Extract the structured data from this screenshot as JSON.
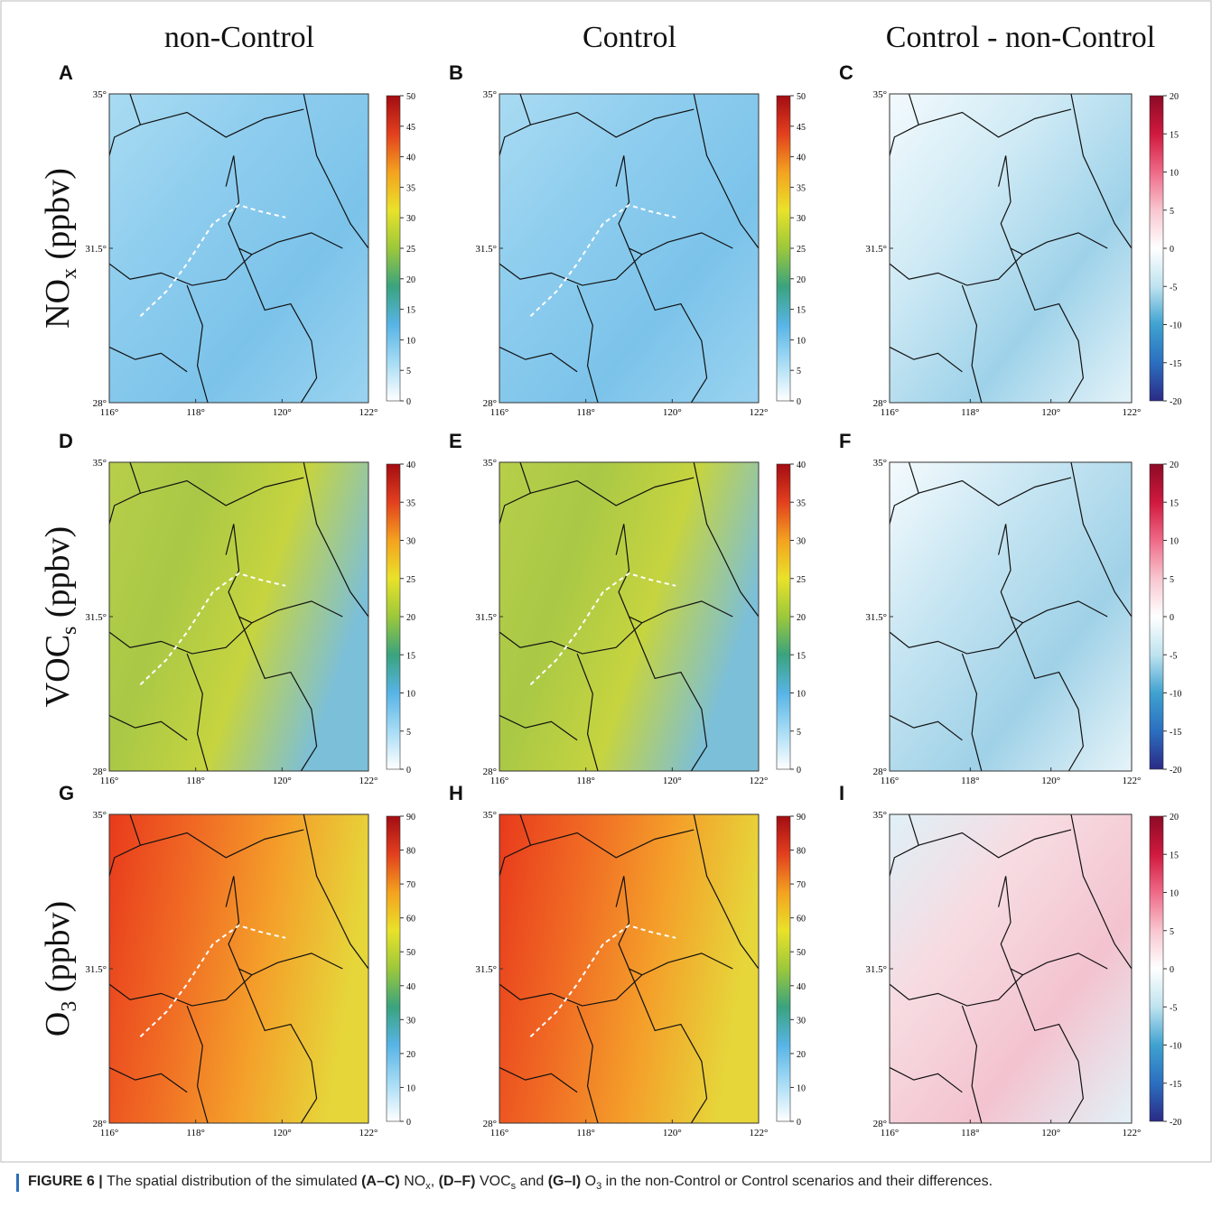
{
  "columns": [
    "non-Control",
    "Control",
    "Control - non-Control"
  ],
  "rows": [
    {
      "name": {
        "main": "NO",
        "sub": "x",
        "rest": " (ppbv)"
      },
      "panels": [
        {
          "letter": "A",
          "colorbar": [
            0,
            5,
            10,
            15,
            20,
            25,
            30,
            35,
            40,
            45,
            50
          ]
        },
        {
          "letter": "B",
          "colorbar": [
            0,
            5,
            10,
            15,
            20,
            25,
            30,
            35,
            40,
            45,
            50
          ]
        },
        {
          "letter": "C",
          "colorbar": [
            -20,
            -15,
            -10,
            -5,
            0,
            5,
            10,
            15,
            20
          ]
        }
      ]
    },
    {
      "name": {
        "main": "VOC",
        "sub": "s",
        "rest": " (ppbv)"
      },
      "panels": [
        {
          "letter": "D",
          "colorbar": [
            0,
            5,
            10,
            15,
            20,
            25,
            30,
            35,
            40
          ]
        },
        {
          "letter": "E",
          "colorbar": [
            0,
            5,
            10,
            15,
            20,
            25,
            30,
            35,
            40
          ]
        },
        {
          "letter": "F",
          "colorbar": [
            -20,
            -15,
            -10,
            -5,
            0,
            5,
            10,
            15,
            20
          ]
        }
      ]
    },
    {
      "name": {
        "main": "O",
        "sub": "3",
        "rest": " (ppbv)"
      },
      "panels": [
        {
          "letter": "G",
          "colorbar": [
            0,
            10,
            20,
            30,
            40,
            50,
            60,
            70,
            80,
            90
          ]
        },
        {
          "letter": "H",
          "colorbar": [
            0,
            10,
            20,
            30,
            40,
            50,
            60,
            70,
            80,
            90
          ]
        },
        {
          "letter": "I",
          "colorbar": [
            -20,
            -15,
            -10,
            -5,
            0,
            5,
            10,
            15,
            20
          ]
        }
      ]
    }
  ],
  "lat_lim": [
    28,
    35
  ],
  "lon_lim": [
    116,
    122
  ],
  "lat_ticks": [
    {
      "value": 35,
      "label": "35°"
    },
    {
      "value": 31.5,
      "label": "31.5°"
    },
    {
      "value": 28,
      "label": "28°"
    }
  ],
  "lon_ticks": [
    {
      "value": 116,
      "label": "116°"
    },
    {
      "value": 118,
      "label": "118°"
    },
    {
      "value": 120,
      "label": "120°"
    },
    {
      "value": 122,
      "label": "122°"
    }
  ],
  "caption": [
    {
      "text": "FIGURE 6 | ",
      "style": "bold"
    },
    {
      "text": "The spatial distribution of the simulated ",
      "style": "normal"
    },
    {
      "text": "(A–C)",
      "style": "bold"
    },
    {
      "text": " NO",
      "style": "normal"
    },
    {
      "text": "x",
      "style": "sub"
    },
    {
      "text": ", ",
      "style": "normal"
    },
    {
      "text": "(D–F)",
      "style": "bold"
    },
    {
      "text": " VOC",
      "style": "normal"
    },
    {
      "text": "s",
      "style": "sub"
    },
    {
      "text": " and ",
      "style": "normal"
    },
    {
      "text": "(G–I)",
      "style": "bold"
    },
    {
      "text": " O",
      "style": "normal"
    },
    {
      "text": "3",
      "style": "sub"
    },
    {
      "text": " in the non-Control or Control scenarios and their differences.",
      "style": "normal"
    }
  ]
}
